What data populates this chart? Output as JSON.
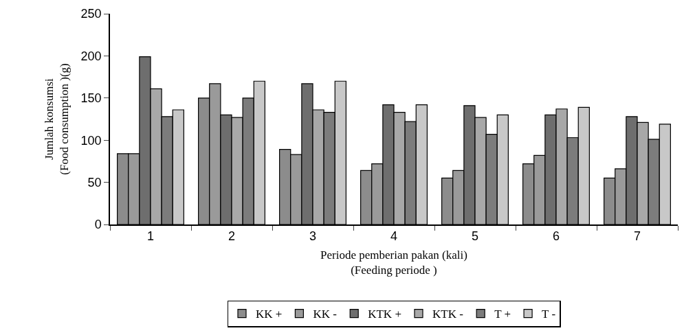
{
  "chart_data": {
    "type": "bar",
    "xlabel": "Periode pemberian pakan (kali)\n(Feeding periode )",
    "ylabel": "Jumlah konsumsi\n(Food consumption )(g)",
    "categories": [
      "1",
      "2",
      "3",
      "4",
      "5",
      "6",
      "7"
    ],
    "series": [
      {
        "name": "KK +",
        "color": "#8c8c8c",
        "values": [
          84,
          150,
          89,
          64,
          55,
          72,
          55
        ]
      },
      {
        "name": "KK -",
        "color": "#9a9a9a",
        "values": [
          84,
          167,
          83,
          72,
          64,
          82,
          66
        ]
      },
      {
        "name": "KTK +",
        "color": "#6e6e6e",
        "values": [
          199,
          130,
          167,
          142,
          141,
          130,
          128
        ]
      },
      {
        "name": "KTK -",
        "color": "#a8a8a8",
        "values": [
          161,
          127,
          136,
          133,
          127,
          137,
          121
        ]
      },
      {
        "name": "T +",
        "color": "#7c7c7c",
        "values": [
          128,
          150,
          133,
          122,
          107,
          103,
          101
        ]
      },
      {
        "name": "T -",
        "color": "#c8c8c8",
        "values": [
          136,
          170,
          170,
          142,
          130,
          139,
          119
        ]
      }
    ],
    "ylim": [
      0,
      250
    ],
    "yticks": [
      0,
      50,
      100,
      150,
      200,
      250
    ],
    "grid": false,
    "legend": "bottom"
  }
}
